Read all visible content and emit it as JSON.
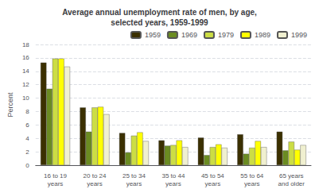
{
  "chart_data": {
    "type": "bar",
    "title": "Average annual unemployment rate of men, by age,\nselected years, 1959-1999",
    "ylabel": "Percent",
    "categories": [
      "16 to 19\nyears",
      "20 to 24\nyears",
      "25 to 34\nyears",
      "35 to 44\nyears",
      "45 to 54\nyears",
      "55 to 64\nyears",
      "65 years\nand older"
    ],
    "series": [
      {
        "name": "1959",
        "color": "#3b3000",
        "values": [
          15.3,
          8.6,
          4.8,
          3.7,
          4.1,
          4.6,
          5.0
        ]
      },
      {
        "name": "1969",
        "color": "#6b8c21",
        "values": [
          11.4,
          5.0,
          1.9,
          2.9,
          1.5,
          1.7,
          2.2
        ]
      },
      {
        "name": "1979",
        "color": "#ccdd44",
        "values": [
          15.9,
          8.6,
          4.4,
          3.0,
          2.7,
          2.6,
          3.5
        ]
      },
      {
        "name": "1989",
        "color": "#ffff00",
        "values": [
          15.9,
          8.7,
          4.9,
          3.7,
          3.1,
          3.6,
          2.3
        ]
      },
      {
        "name": "1999",
        "color": "#f0f0d0",
        "values": [
          14.7,
          7.6,
          3.6,
          2.7,
          2.6,
          2.7,
          3.0
        ]
      }
    ],
    "ylim": [
      0,
      18
    ],
    "yticks": [
      0,
      2,
      4,
      6,
      8,
      10,
      12,
      14,
      16,
      18
    ],
    "grid": true,
    "legend": "upper right"
  }
}
